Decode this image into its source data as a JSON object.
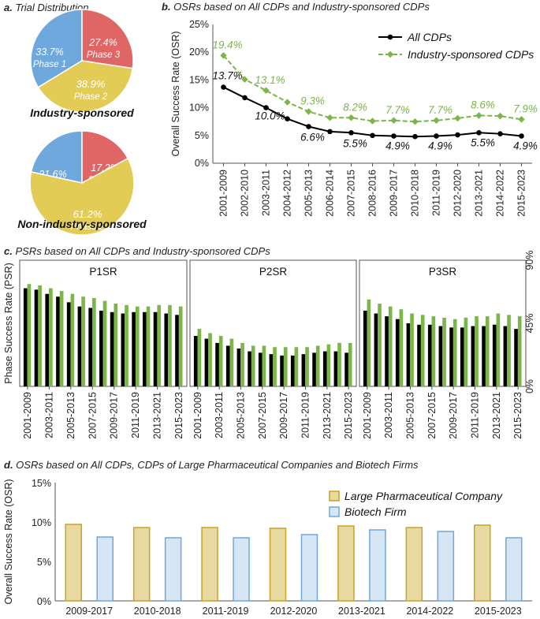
{
  "chart_data": [
    {
      "id": "a",
      "type": "pie",
      "title_letter": "a.",
      "title": "Trial Distribution",
      "pies": [
        {
          "label": "Industry-sponsored",
          "slices": [
            {
              "name": "Phase 1",
              "value": 33.7,
              "label": "33.7%",
              "color": "#6fa8dc"
            },
            {
              "name": "Phase 3",
              "value": 27.4,
              "label": "27.4%",
              "color": "#e06666"
            },
            {
              "name": "Phase 2",
              "value": 38.9,
              "label": "38.9%",
              "color": "#e3cc55"
            }
          ]
        },
        {
          "label": "Non-industry-sponsored",
          "slices": [
            {
              "name": "Phase 1",
              "value": 21.6,
              "label": "21.6%",
              "color": "#6fa8dc"
            },
            {
              "name": "Phase 3",
              "value": 17.2,
              "label": "17.2%",
              "color": "#e06666"
            },
            {
              "name": "Phase 2",
              "value": 61.2,
              "label": "61.2%",
              "color": "#e3cc55"
            }
          ]
        }
      ]
    },
    {
      "id": "b",
      "type": "line",
      "title_letter": "b.",
      "title": "OSRs based on All CDPs and Industry-sponsored CDPs",
      "ylabel": "Overall Success Rate (OSR)",
      "ylim": [
        0,
        25
      ],
      "yticks": [
        "0%",
        "5%",
        "10%",
        "15%",
        "20%",
        "25%"
      ],
      "categories": [
        "2001-2009",
        "2002-2010",
        "2003-2011",
        "2004-2012",
        "2005-2013",
        "2006-2014",
        "2007-2015",
        "2008-2016",
        "2009-2017",
        "2010-2018",
        "2011-2019",
        "2012-2020",
        "2013-2021",
        "2014-2022",
        "2015-2023"
      ],
      "series": [
        {
          "name": "All CDPs",
          "color": "#000000",
          "values": [
            13.7,
            11.8,
            10.0,
            8.0,
            6.6,
            5.7,
            5.5,
            5.0,
            4.9,
            4.8,
            4.9,
            5.1,
            5.5,
            5.3,
            4.9
          ],
          "labels": {
            "0": "13.7%",
            "2": "10.0%",
            "4": "6.6%",
            "6": "5.5%",
            "8": "4.9%",
            "10": "4.9%",
            "12": "5.5%",
            "14": "4.9%"
          }
        },
        {
          "name": "Industry-sponsored CDPs",
          "color": "#7ab648",
          "values": [
            19.4,
            15.1,
            13.1,
            11.0,
            9.3,
            8.2,
            8.2,
            7.6,
            7.7,
            7.5,
            7.7,
            8.1,
            8.6,
            8.5,
            7.9
          ],
          "labels": {
            "0": "19.4%",
            "2": "13.1%",
            "4": "9.3%",
            "6": "8.2%",
            "8": "7.7%",
            "10": "7.7%",
            "12": "8.6%",
            "14": "7.9%"
          }
        }
      ],
      "legend_position": "top-right"
    },
    {
      "id": "c",
      "type": "bar",
      "title_letter": "c.",
      "title": "PSRs based on All CDPs and Industry-sponsored CDPs",
      "ylabel": "Phase Success Rate (PSR)",
      "ylim": [
        0,
        90
      ],
      "yticks": [
        "0%",
        "45%",
        "90%"
      ],
      "categories": [
        "2001-2009",
        "2002-2010",
        "2003-2011",
        "2004-2012",
        "2005-2013",
        "2006-2014",
        "2007-2015",
        "2008-2016",
        "2009-2017",
        "2010-2018",
        "2011-2019",
        "2012-2020",
        "2013-2021",
        "2014-2022",
        "2015-2023"
      ],
      "x_tick_labels": [
        "2001-2009",
        "2003-2011",
        "2005-2013",
        "2007-2015",
        "2009-2017",
        "2011-2019",
        "2013-2021",
        "2015-2023"
      ],
      "panels": [
        {
          "name": "P1SR",
          "all": [
            70,
            69,
            66,
            64,
            60,
            57,
            56,
            54,
            53,
            52,
            53,
            53,
            53,
            52,
            51
          ],
          "industry": [
            73,
            72,
            70,
            68,
            66,
            64,
            63,
            61,
            59,
            58,
            57,
            57,
            58,
            58,
            57
          ]
        },
        {
          "name": "P2SR",
          "all": [
            36,
            34,
            31,
            29,
            27,
            25,
            24,
            23,
            22,
            22,
            23,
            24,
            25,
            25,
            24
          ],
          "industry": [
            41,
            38,
            36,
            34,
            31,
            29,
            29,
            28,
            28,
            28,
            28,
            29,
            30,
            31,
            31
          ]
        },
        {
          "name": "P3SR",
          "all": [
            54,
            52,
            50,
            48,
            45,
            44,
            44,
            43,
            42,
            42,
            43,
            43,
            44,
            43,
            41
          ],
          "industry": [
            62,
            59,
            57,
            55,
            52,
            51,
            50,
            49,
            48,
            49,
            50,
            50,
            52,
            51,
            50
          ]
        }
      ],
      "series_colors": {
        "all": "#000000",
        "industry": "#7ab648"
      }
    },
    {
      "id": "d",
      "type": "bar",
      "title_letter": "d.",
      "title": "OSRs based on All CDPs, CDPs of Large Pharmaceutical Companies and Biotech Firms",
      "ylabel": "Overall Success Rate (OSR)",
      "ylim": [
        0,
        15
      ],
      "yticks": [
        "0%",
        "5%",
        "10%",
        "15%"
      ],
      "categories": [
        "2009-2017",
        "2010-2018",
        "2011-2019",
        "2012-2020",
        "2013-2021",
        "2014-2022",
        "2015-2023"
      ],
      "series": [
        {
          "name": "Large Pharmaceutical Company",
          "fill": "#e8d9a0",
          "stroke": "#c9a227",
          "values": [
            9.7,
            9.3,
            9.3,
            9.2,
            9.5,
            9.3,
            9.6
          ]
        },
        {
          "name": "Biotech Firm",
          "fill": "#d6e6f5",
          "stroke": "#6fa8dc",
          "values": [
            8.1,
            8.0,
            8.0,
            8.4,
            9.0,
            8.8,
            8.0
          ]
        }
      ],
      "legend_position": "top-right"
    }
  ]
}
